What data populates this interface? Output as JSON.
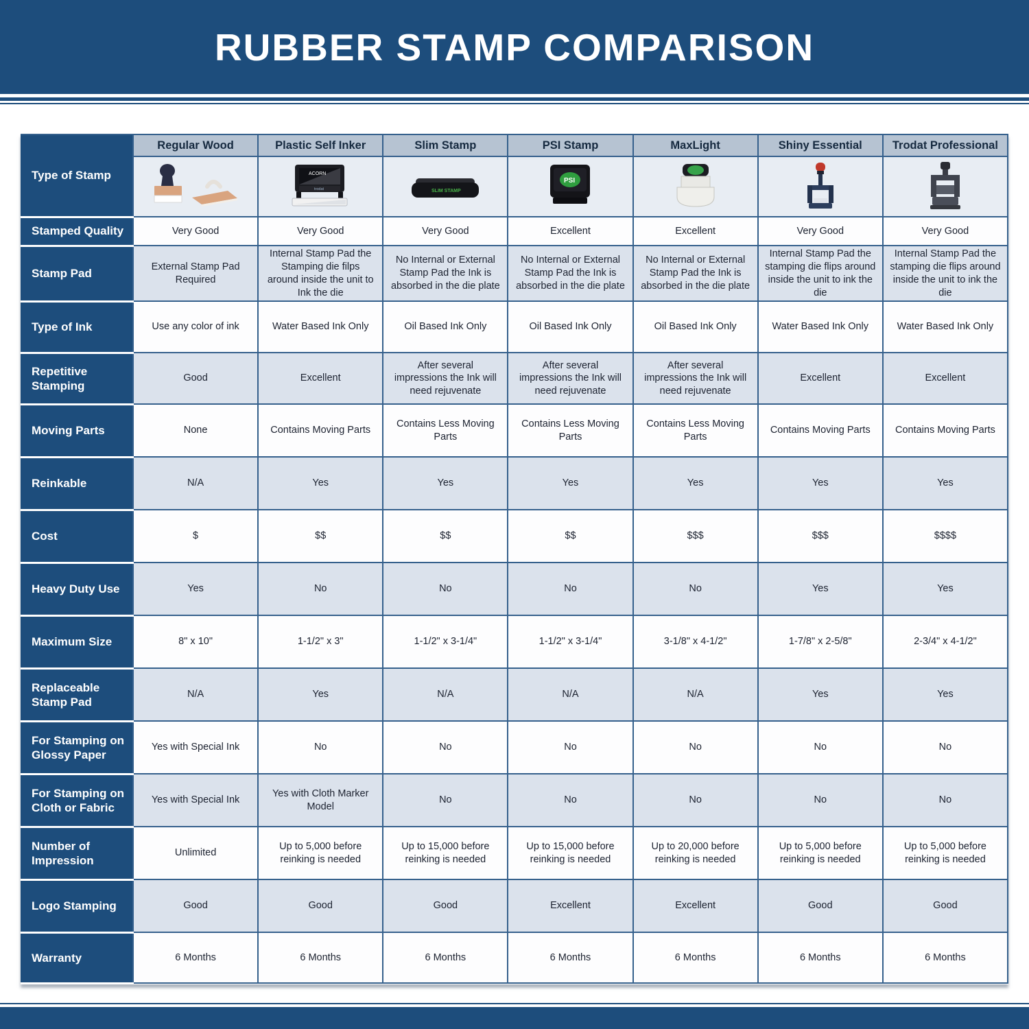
{
  "title": "RUBBER STAMP COMPARISON",
  "colors": {
    "banner_navy": "#1d4d7c",
    "header_row_bg": "#b6c3d2",
    "image_row_bg": "#e8edf3",
    "alt_row_bg": "#dbe2ec",
    "white_row_bg": "#fdfdfe",
    "grid_line": "#35608c",
    "label_text": "#ffffff",
    "cell_text": "#1c2230",
    "psi_logo_green": "#2f9e3f",
    "shiny_cap_red": "#c0392b"
  },
  "table": {
    "columns": [
      {
        "name": "Regular Wood",
        "icon": "regular-wood-stamp"
      },
      {
        "name": "Plastic Self Inker",
        "icon": "plastic-self-inker-stamp"
      },
      {
        "name": "Slim Stamp",
        "icon": "slim-stamp"
      },
      {
        "name": "PSI Stamp",
        "icon": "psi-stamp"
      },
      {
        "name": "MaxLight",
        "icon": "maxlight-stamp"
      },
      {
        "name": "Shiny Essential",
        "icon": "shiny-essential-stamp"
      },
      {
        "name": "Trodat Professional",
        "icon": "trodat-professional-stamp"
      }
    ],
    "rows": [
      {
        "label": "Type of Stamp",
        "values": []
      },
      {
        "label": "Stamped Quality",
        "values": [
          "Very Good",
          "Very Good",
          "Very Good",
          "Excellent",
          "Excellent",
          "Very Good",
          "Very Good"
        ]
      },
      {
        "label": "Stamp Pad",
        "values": [
          "External Stamp Pad Required",
          "Internal Stamp Pad the Stamping die filps around inside the unit to Ink the die",
          "No Internal or External Stamp Pad the Ink is absorbed in the die plate",
          "No Internal or External Stamp Pad the Ink is absorbed in the die plate",
          "No Internal or External Stamp Pad the Ink is absorbed in the die plate",
          "Internal Stamp Pad the stamping die flips around inside the unit to ink the die",
          "Internal Stamp Pad the stamping die flips around inside the unit to ink the die"
        ]
      },
      {
        "label": "Type of Ink",
        "values": [
          "Use any color of ink",
          "Water Based Ink Only",
          "Oil Based Ink Only",
          "Oil Based Ink Only",
          "Oil Based Ink Only",
          "Water Based Ink Only",
          "Water Based Ink Only"
        ]
      },
      {
        "label": "Repetitive Stamping",
        "values": [
          "Good",
          "Excellent",
          "After several impressions the Ink will need rejuvenate",
          "After several impressions the Ink will need rejuvenate",
          "After several impressions the Ink will need rejuvenate",
          "Excellent",
          "Excellent"
        ]
      },
      {
        "label": "Moving Parts",
        "values": [
          "None",
          "Contains Moving Parts",
          "Contains Less Moving Parts",
          "Contains Less Moving Parts",
          "Contains Less Moving Parts",
          "Contains Moving Parts",
          "Contains Moving Parts"
        ]
      },
      {
        "label": "Reinkable",
        "values": [
          "N/A",
          "Yes",
          "Yes",
          "Yes",
          "Yes",
          "Yes",
          "Yes"
        ]
      },
      {
        "label": "Cost",
        "values": [
          "$",
          "$$",
          "$$",
          "$$",
          "$$$",
          "$$$",
          "$$$$"
        ]
      },
      {
        "label": "Heavy Duty Use",
        "values": [
          "Yes",
          "No",
          "No",
          "No",
          "No",
          "Yes",
          "Yes"
        ]
      },
      {
        "label": "Maximum Size",
        "values": [
          "8\" x 10\"",
          "1-1/2\" x 3\"",
          "1-1/2\" x 3-1/4\"",
          "1-1/2\" x 3-1/4\"",
          "3-1/8\" x 4-1/2\"",
          "1-7/8\" x 2-5/8\"",
          "2-3/4\" x 4-1/2\""
        ]
      },
      {
        "label": "Replaceable Stamp Pad",
        "values": [
          "N/A",
          "Yes",
          "N/A",
          "N/A",
          "N/A",
          "Yes",
          "Yes"
        ]
      },
      {
        "label": "For Stamping on Glossy Paper",
        "values": [
          "Yes with Special Ink",
          "No",
          "No",
          "No",
          "No",
          "No",
          "No"
        ]
      },
      {
        "label": "For Stamping on Cloth or Fabric",
        "values": [
          "Yes with Special Ink",
          "Yes with Cloth Marker Model",
          "No",
          "No",
          "No",
          "No",
          "No"
        ]
      },
      {
        "label": "Number of Impression",
        "values": [
          "Unlimited",
          "Up to 5,000 before reinking is needed",
          "Up to 15,000 before reinking is needed",
          "Up to 15,000 before reinking is needed",
          "Up to 20,000 before reinking is needed",
          "Up to 5,000 before reinking is needed",
          "Up to 5,000 before reinking is needed"
        ]
      },
      {
        "label": "Logo Stamping",
        "values": [
          "Good",
          "Good",
          "Good",
          "Excellent",
          "Excellent",
          "Good",
          "Good"
        ]
      },
      {
        "label": "Warranty",
        "values": [
          "6 Months",
          "6 Months",
          "6 Months",
          "6 Months",
          "6 Months",
          "6 Months",
          "6 Months"
        ]
      }
    ]
  },
  "chart_data": {
    "type": "table",
    "title": "RUBBER STAMP COMPARISON",
    "columns": [
      "Regular Wood",
      "Plastic Self Inker",
      "Slim Stamp",
      "PSI Stamp",
      "MaxLight",
      "Shiny Essential",
      "Trodat Professional"
    ],
    "row_headers": [
      "Type of Stamp",
      "Stamped Quality",
      "Stamp Pad",
      "Type of Ink",
      "Repetitive Stamping",
      "Moving Parts",
      "Reinkable",
      "Cost",
      "Heavy Duty Use",
      "Maximum Size",
      "Replaceable Stamp Pad",
      "For Stamping on Glossy Paper",
      "For Stamping on Cloth or Fabric",
      "Number of Impression",
      "Logo Stamping",
      "Warranty"
    ],
    "cells": [
      [
        "(product image)",
        "(product image)",
        "(product image)",
        "(product image)",
        "(product image)",
        "(product image)",
        "(product image)"
      ],
      [
        "Very Good",
        "Very Good",
        "Very Good",
        "Excellent",
        "Excellent",
        "Very Good",
        "Very Good"
      ],
      [
        "External Stamp Pad Required",
        "Internal Stamp Pad the Stamping die filps around inside the unit to Ink the die",
        "No Internal or External Stamp Pad the Ink is absorbed in the die plate",
        "No Internal or External Stamp Pad the Ink is absorbed in the die plate",
        "No Internal or External Stamp Pad the Ink is absorbed in the die plate",
        "Internal Stamp Pad the stamping die flips around inside the unit to ink the die",
        "Internal Stamp Pad the stamping die flips around inside the unit to ink the die"
      ],
      [
        "Use any color of ink",
        "Water Based Ink Only",
        "Oil Based Ink Only",
        "Oil Based Ink Only",
        "Oil Based Ink Only",
        "Water Based Ink Only",
        "Water Based Ink Only"
      ],
      [
        "Good",
        "Excellent",
        "After several impressions the Ink will need rejuvenate",
        "After several impressions the Ink will need rejuvenate",
        "After several impressions the Ink will need rejuvenate",
        "Excellent",
        "Excellent"
      ],
      [
        "None",
        "Contains Moving Parts",
        "Contains Less Moving Parts",
        "Contains Less Moving Parts",
        "Contains Less Moving Parts",
        "Contains Moving Parts",
        "Contains Moving Parts"
      ],
      [
        "N/A",
        "Yes",
        "Yes",
        "Yes",
        "Yes",
        "Yes",
        "Yes"
      ],
      [
        "$",
        "$$",
        "$$",
        "$$",
        "$$$",
        "$$$",
        "$$$$"
      ],
      [
        "Yes",
        "No",
        "No",
        "No",
        "No",
        "Yes",
        "Yes"
      ],
      [
        "8\" x 10\"",
        "1-1/2\" x 3\"",
        "1-1/2\" x 3-1/4\"",
        "1-1/2\" x 3-1/4\"",
        "3-1/8\" x 4-1/2\"",
        "1-7/8\" x 2-5/8\"",
        "2-3/4\" x 4-1/2\""
      ],
      [
        "N/A",
        "Yes",
        "N/A",
        "N/A",
        "N/A",
        "Yes",
        "Yes"
      ],
      [
        "Yes with Special Ink",
        "No",
        "No",
        "No",
        "No",
        "No",
        "No"
      ],
      [
        "Yes with Special Ink",
        "Yes with Cloth Marker Model",
        "No",
        "No",
        "No",
        "No",
        "No"
      ],
      [
        "Unlimited",
        "Up to 5,000 before reinking is needed",
        "Up to 15,000 before reinking is needed",
        "Up to 15,000 before reinking is needed",
        "Up to 20,000 before reinking is needed",
        "Up to 5,000 before reinking is needed",
        "Up to 5,000 before reinking is needed"
      ],
      [
        "Good",
        "Good",
        "Good",
        "Excellent",
        "Excellent",
        "Good",
        "Good"
      ],
      [
        "6 Months",
        "6 Months",
        "6 Months",
        "6 Months",
        "6 Months",
        "6 Months",
        "6 Months"
      ]
    ]
  }
}
